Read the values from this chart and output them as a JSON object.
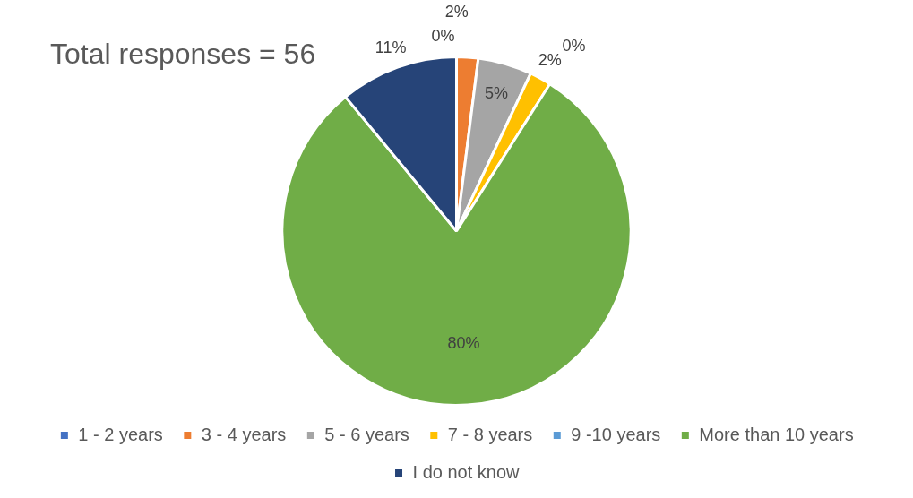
{
  "chart_data": {
    "type": "pie",
    "title": "Total responses = 56",
    "categories": [
      "1 - 2 years",
      "3 - 4 years",
      "5 - 6 years",
      "7 - 8 years",
      "9 -10 years",
      "More than 10 years",
      "I do not know"
    ],
    "values": [
      0,
      2,
      5,
      2,
      0,
      80,
      11
    ],
    "colors": [
      "#4472c4",
      "#ed7d31",
      "#a5a5a5",
      "#ffc000",
      "#5b9bd5",
      "#70ad47",
      "#264478"
    ],
    "value_labels": [
      "0%",
      "2%",
      "5%",
      "2%",
      "0%",
      "80%",
      "11%"
    ],
    "legend": "bottom"
  }
}
